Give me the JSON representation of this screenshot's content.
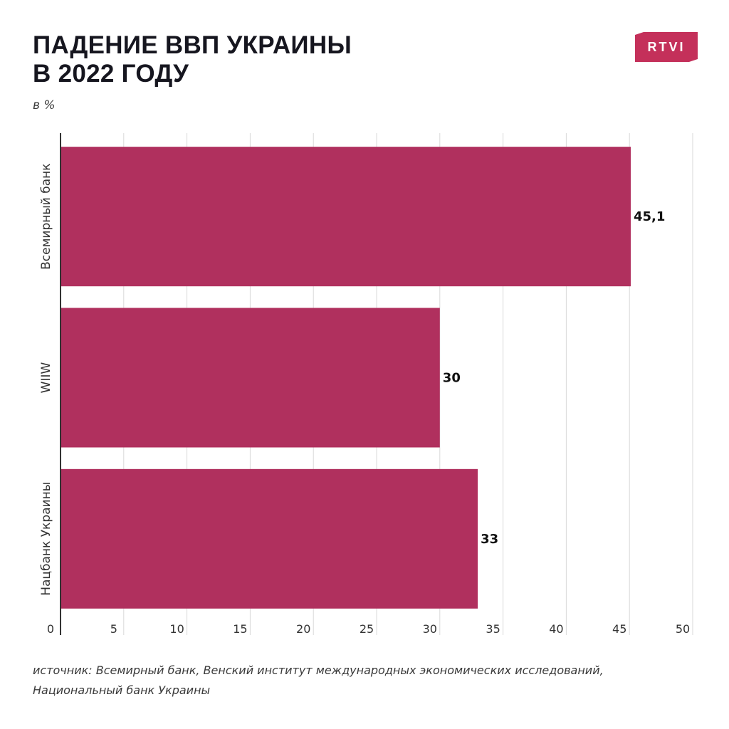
{
  "header": {
    "title_line1": "ПАДЕНИЕ ВВП УКРАИНЫ",
    "title_line2": "В 2022 ГОДУ",
    "unit": "в %",
    "logo_text": "RTVI"
  },
  "footer": {
    "source_line1": "источник: Всемирный банк, Венский институт международных экономических исследований,",
    "source_line2": "Национальный банк Украины"
  },
  "colors": {
    "bar": "#b0305e",
    "logo": "#c4305a",
    "grid": "#d9d9d9",
    "axis": "#333333"
  },
  "chart_data": {
    "type": "bar",
    "orientation": "horizontal",
    "categories": [
      "Всемирный банк",
      "WIIW",
      "Нацбанк Украины"
    ],
    "values": [
      45.1,
      30,
      33
    ],
    "value_labels": [
      "45,1",
      "30",
      "33"
    ],
    "xlim": [
      0,
      50
    ],
    "ticks": [
      0,
      5,
      10,
      15,
      20,
      25,
      30,
      35,
      40,
      45,
      50
    ],
    "grid": true,
    "title": "ПАДЕНИЕ ВВП УКРАИНЫ В 2022 ГОДУ",
    "unit": "в %"
  }
}
